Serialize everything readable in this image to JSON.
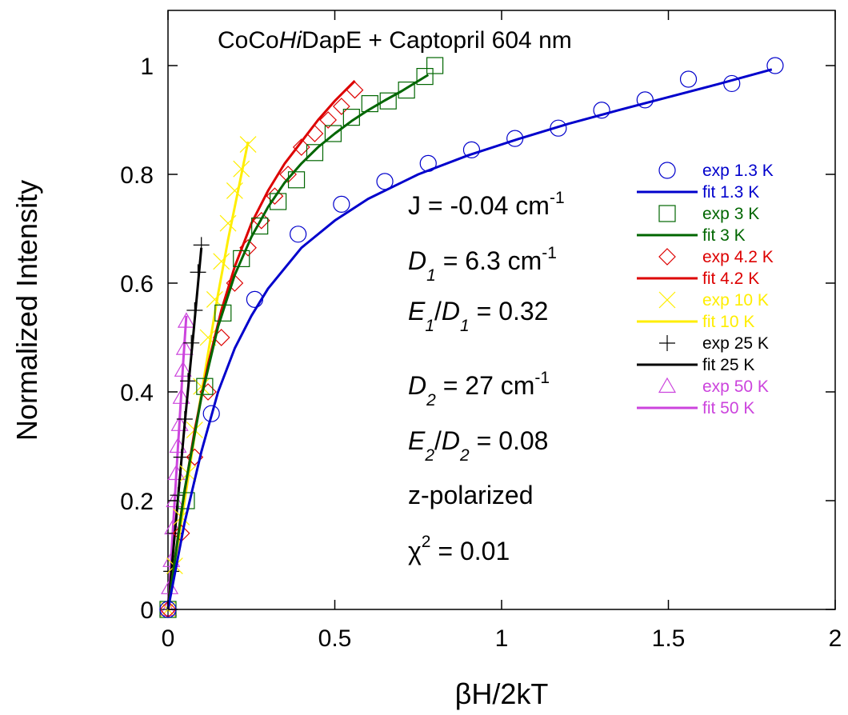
{
  "chart_data": {
    "type": "scatter",
    "title": {
      "prefix": "CoCo",
      "italic": "Hi",
      "suffix": "DapE + Captopril 604 nm"
    },
    "xlabel": "βH/2kT",
    "ylabel": "Normalized Intensity",
    "xlim": [
      0,
      2
    ],
    "ylim": [
      0,
      1
    ],
    "xticks": [
      0,
      0.5,
      1,
      1.5,
      2
    ],
    "xtick_labels": [
      "0",
      "0.5",
      "1",
      "1.5",
      "2"
    ],
    "yticks": [
      0,
      0.2,
      0.4,
      0.6,
      0.8,
      1
    ],
    "ytick_labels": [
      "0",
      "0.2",
      "0.4",
      "0.6",
      "0.8",
      "1"
    ],
    "grid": false,
    "legend_position": "right",
    "annotations": {
      "j": {
        "main": "J = -0.04 cm",
        "sup": "-1"
      },
      "d1": {
        "sym": "D",
        "sub": "1",
        "rest": " = 6.3 cm",
        "sup": "-1"
      },
      "e1d1": {
        "sym1": "E",
        "sub1": "1",
        "slash": "/",
        "sym2": "D",
        "sub2": "1",
        "rest": " = 0.32"
      },
      "d2": {
        "sym": "D",
        "sub": "2",
        "rest": " = 27 cm",
        "sup": "-1"
      },
      "e2d2": {
        "sym1": "E",
        "sub1": "2",
        "slash": "/",
        "sym2": "D",
        "sub2": "2",
        "rest": " = 0.08"
      },
      "polarization": "z-polarized",
      "chi": {
        "sym": "χ",
        "sup": "2",
        "rest": " = 0.01"
      }
    },
    "series": [
      {
        "exp_name": "exp 1.3 K",
        "fit_name": "fit 1.3 K",
        "color": "#0000cc",
        "marker": "circle",
        "exp": [
          [
            0,
            0
          ],
          [
            0.13,
            0.36
          ],
          [
            0.26,
            0.57
          ],
          [
            0.39,
            0.69
          ],
          [
            0.52,
            0.745
          ],
          [
            0.65,
            0.787
          ],
          [
            0.78,
            0.82
          ],
          [
            0.91,
            0.845
          ],
          [
            1.04,
            0.866
          ],
          [
            1.17,
            0.885
          ],
          [
            1.3,
            0.918
          ],
          [
            1.43,
            0.937
          ],
          [
            1.56,
            0.975
          ],
          [
            1.69,
            0.967
          ],
          [
            1.82,
            1.0
          ]
        ],
        "fit": [
          [
            0,
            0
          ],
          [
            0.05,
            0.16
          ],
          [
            0.1,
            0.29
          ],
          [
            0.15,
            0.4
          ],
          [
            0.2,
            0.48
          ],
          [
            0.25,
            0.54
          ],
          [
            0.3,
            0.59
          ],
          [
            0.4,
            0.665
          ],
          [
            0.5,
            0.715
          ],
          [
            0.6,
            0.755
          ],
          [
            0.75,
            0.8
          ],
          [
            0.9,
            0.835
          ],
          [
            1.05,
            0.865
          ],
          [
            1.2,
            0.893
          ],
          [
            1.35,
            0.918
          ],
          [
            1.5,
            0.942
          ],
          [
            1.65,
            0.966
          ],
          [
            1.81,
            0.993
          ]
        ]
      },
      {
        "exp_name": "exp 3 K",
        "fit_name": "fit 3 K",
        "color": "#006600",
        "marker": "square",
        "exp": [
          [
            0,
            0
          ],
          [
            0.055,
            0.2
          ],
          [
            0.11,
            0.41
          ],
          [
            0.165,
            0.545
          ],
          [
            0.22,
            0.645
          ],
          [
            0.275,
            0.705
          ],
          [
            0.33,
            0.75
          ],
          [
            0.385,
            0.79
          ],
          [
            0.44,
            0.84
          ],
          [
            0.495,
            0.875
          ],
          [
            0.55,
            0.905
          ],
          [
            0.605,
            0.93
          ],
          [
            0.66,
            0.935
          ],
          [
            0.715,
            0.955
          ],
          [
            0.77,
            0.98
          ],
          [
            0.8,
            1.0
          ]
        ],
        "fit": [
          [
            0,
            0
          ],
          [
            0.05,
            0.22
          ],
          [
            0.1,
            0.39
          ],
          [
            0.15,
            0.52
          ],
          [
            0.2,
            0.615
          ],
          [
            0.25,
            0.685
          ],
          [
            0.3,
            0.74
          ],
          [
            0.35,
            0.785
          ],
          [
            0.4,
            0.82
          ],
          [
            0.45,
            0.85
          ],
          [
            0.5,
            0.875
          ],
          [
            0.55,
            0.898
          ],
          [
            0.6,
            0.918
          ],
          [
            0.65,
            0.936
          ],
          [
            0.7,
            0.953
          ],
          [
            0.78,
            0.983
          ]
        ]
      },
      {
        "exp_name": "exp 4.2 K",
        "fit_name": "fit 4.2 K",
        "color": "#dd0000",
        "marker": "diamond",
        "exp": [
          [
            0,
            0
          ],
          [
            0.04,
            0.14
          ],
          [
            0.08,
            0.28
          ],
          [
            0.12,
            0.4
          ],
          [
            0.16,
            0.5
          ],
          [
            0.2,
            0.6
          ],
          [
            0.24,
            0.665
          ],
          [
            0.28,
            0.715
          ],
          [
            0.32,
            0.76
          ],
          [
            0.36,
            0.8
          ],
          [
            0.4,
            0.85
          ],
          [
            0.44,
            0.875
          ],
          [
            0.48,
            0.9
          ],
          [
            0.52,
            0.925
          ],
          [
            0.56,
            0.955
          ]
        ],
        "fit": [
          [
            0,
            0
          ],
          [
            0.04,
            0.18
          ],
          [
            0.08,
            0.33
          ],
          [
            0.12,
            0.45
          ],
          [
            0.16,
            0.55
          ],
          [
            0.2,
            0.63
          ],
          [
            0.25,
            0.71
          ],
          [
            0.3,
            0.77
          ],
          [
            0.35,
            0.82
          ],
          [
            0.4,
            0.86
          ],
          [
            0.45,
            0.9
          ],
          [
            0.5,
            0.935
          ],
          [
            0.56,
            0.972
          ]
        ]
      },
      {
        "exp_name": "exp 10 K",
        "fit_name": "fit 10 K",
        "color": "#ffee00",
        "marker": "x",
        "exp": [
          [
            0,
            0
          ],
          [
            0.02,
            0.08
          ],
          [
            0.04,
            0.17
          ],
          [
            0.06,
            0.25
          ],
          [
            0.08,
            0.33
          ],
          [
            0.1,
            0.41
          ],
          [
            0.12,
            0.5
          ],
          [
            0.14,
            0.57
          ],
          [
            0.16,
            0.64
          ],
          [
            0.18,
            0.71
          ],
          [
            0.2,
            0.77
          ],
          [
            0.22,
            0.81
          ],
          [
            0.24,
            0.855
          ]
        ],
        "fit": [
          [
            0,
            0
          ],
          [
            0.03,
            0.12
          ],
          [
            0.06,
            0.24
          ],
          [
            0.09,
            0.36
          ],
          [
            0.12,
            0.47
          ],
          [
            0.15,
            0.58
          ],
          [
            0.18,
            0.68
          ],
          [
            0.21,
            0.77
          ],
          [
            0.24,
            0.86
          ]
        ]
      },
      {
        "exp_name": "exp 25 K",
        "fit_name": "fit 25 K",
        "color": "#000000",
        "marker": "plus",
        "exp": [
          [
            0,
            0
          ],
          [
            0.01,
            0.07
          ],
          [
            0.02,
            0.14
          ],
          [
            0.03,
            0.21
          ],
          [
            0.04,
            0.28
          ],
          [
            0.05,
            0.35
          ],
          [
            0.06,
            0.42
          ],
          [
            0.07,
            0.49
          ],
          [
            0.08,
            0.55
          ],
          [
            0.09,
            0.62
          ],
          [
            0.1,
            0.67
          ]
        ],
        "fit": [
          [
            0,
            0
          ],
          [
            0.025,
            0.17
          ],
          [
            0.05,
            0.34
          ],
          [
            0.075,
            0.5
          ],
          [
            0.1,
            0.665
          ]
        ]
      },
      {
        "exp_name": "exp 50 K",
        "fit_name": "fit 50 K",
        "color": "#cc44dd",
        "marker": "triangle",
        "exp": [
          [
            0,
            0
          ],
          [
            0.005,
            0.04
          ],
          [
            0.01,
            0.09
          ],
          [
            0.015,
            0.15
          ],
          [
            0.02,
            0.2
          ],
          [
            0.025,
            0.25
          ],
          [
            0.03,
            0.3
          ],
          [
            0.035,
            0.34
          ],
          [
            0.04,
            0.39
          ],
          [
            0.045,
            0.44
          ],
          [
            0.05,
            0.48
          ],
          [
            0.055,
            0.53
          ]
        ],
        "fit": [
          [
            0,
            0
          ],
          [
            0.015,
            0.15
          ],
          [
            0.03,
            0.3
          ],
          [
            0.045,
            0.45
          ],
          [
            0.055,
            0.54
          ]
        ]
      }
    ]
  }
}
